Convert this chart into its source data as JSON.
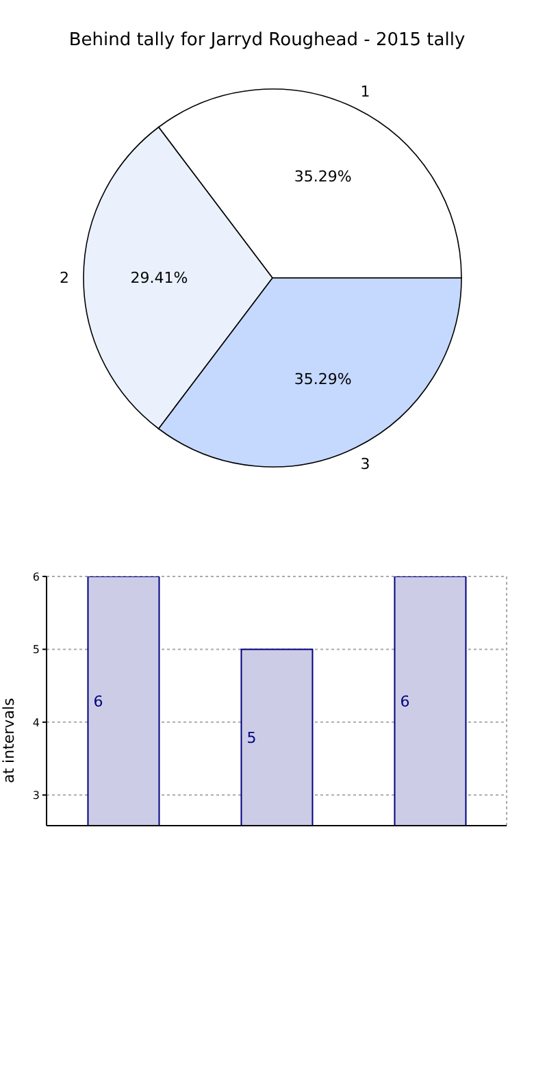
{
  "chart_data": [
    {
      "type": "pie",
      "title": "Behind tally for Jarryd Roughead - 2015 tally",
      "categories": [
        "1",
        "2",
        "3"
      ],
      "values": [
        35.29,
        29.41,
        35.29
      ],
      "colors": [
        "#ffffff",
        "#eaf1fd",
        "#c5d8fe"
      ],
      "value_labels": [
        "35.29%",
        "29.41%",
        "35.29%"
      ]
    },
    {
      "type": "bar",
      "ylabel": "at intervals",
      "categories": [
        null,
        null,
        null
      ],
      "values": [
        6,
        5,
        6
      ],
      "color": "#cccce6",
      "ylim": [
        2.58,
        6
      ],
      "yticks": [
        3,
        4,
        5,
        6
      ],
      "grid": true,
      "data_labels": true,
      "tick_labels": "y"
    }
  ]
}
